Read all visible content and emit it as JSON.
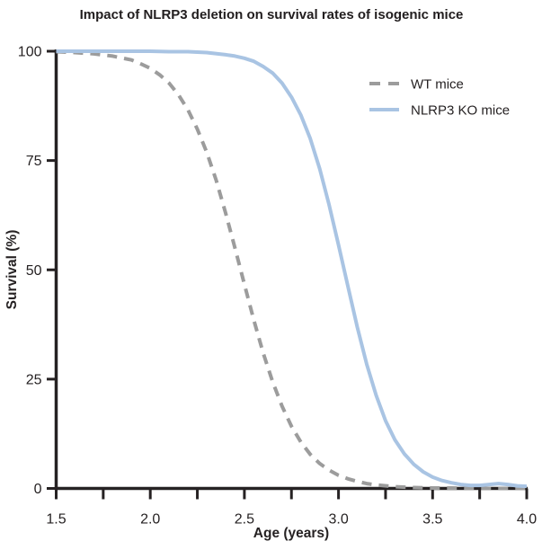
{
  "title": "Impact of NLRP3 deletion on survival rates of isogenic mice",
  "chart_data": {
    "type": "line",
    "title": "Impact of NLRP3 deletion on survival rates of isogenic mice",
    "xlabel": "Age (years)",
    "ylabel": "Survival (%)",
    "xlim": [
      1.5,
      4.0
    ],
    "ylim": [
      0,
      100
    ],
    "grid": false,
    "legend_position": "upper-right-inside",
    "axis_color": "#262223",
    "x_major_ticks": [
      1.5,
      2.0,
      2.5,
      3.0,
      3.5,
      4.0
    ],
    "x_tick_labels": [
      "1.5",
      "2.0",
      "2.5",
      "3.0",
      "3.5",
      "4.0"
    ],
    "x_minor_ticks": [
      1.75,
      2.25,
      2.75,
      3.25,
      3.75
    ],
    "y_ticks": [
      0,
      25,
      50,
      75,
      100
    ],
    "y_tick_labels": [
      "0",
      "25",
      "50",
      "75",
      "100"
    ],
    "series": [
      {
        "name": "WT mice",
        "color": "#9c9c9c",
        "style": "dashed",
        "dash": "11 8",
        "x": [
          1.5,
          1.6,
          1.7,
          1.8,
          1.9,
          1.95,
          2.0,
          2.05,
          2.1,
          2.15,
          2.2,
          2.25,
          2.3,
          2.35,
          2.4,
          2.45,
          2.5,
          2.55,
          2.6,
          2.65,
          2.7,
          2.75,
          2.8,
          2.85,
          2.9,
          2.95,
          3.0,
          3.05,
          3.1,
          3.15,
          3.2,
          3.3,
          3.4,
          3.5,
          3.6,
          3.7,
          3.8,
          3.9,
          4.0
        ],
        "y": [
          99.9,
          99.7,
          99.4,
          98.9,
          98.0,
          97.1,
          96.1,
          94.6,
          92.7,
          90.0,
          86.6,
          82.2,
          76.9,
          70.5,
          63.0,
          55.0,
          46.7,
          38.5,
          31.0,
          24.4,
          18.8,
          14.2,
          10.6,
          7.8,
          5.7,
          4.2,
          3.0,
          2.2,
          1.6,
          1.1,
          0.8,
          0.4,
          0.2,
          0.1,
          0.1,
          0.0,
          0.0,
          0.0,
          0.0
        ]
      },
      {
        "name": "NLRP3 KO mice",
        "color": "#a9c4e3",
        "style": "solid",
        "dash": "",
        "x": [
          1.5,
          1.7,
          1.9,
          2.0,
          2.1,
          2.2,
          2.3,
          2.4,
          2.45,
          2.5,
          2.55,
          2.6,
          2.65,
          2.7,
          2.75,
          2.8,
          2.85,
          2.9,
          2.95,
          3.0,
          3.05,
          3.1,
          3.15,
          3.2,
          3.25,
          3.3,
          3.35,
          3.4,
          3.45,
          3.5,
          3.55,
          3.6,
          3.65,
          3.7,
          3.75,
          3.8,
          3.85,
          3.9,
          3.95,
          4.0
        ],
        "y": [
          100,
          100,
          100,
          100,
          99.9,
          99.9,
          99.7,
          99.2,
          98.9,
          98.4,
          97.7,
          96.5,
          95.0,
          92.7,
          89.5,
          85.4,
          80.0,
          73.1,
          64.9,
          55.7,
          46.2,
          36.9,
          28.4,
          21.3,
          15.5,
          11.1,
          7.9,
          5.5,
          3.8,
          2.6,
          1.8,
          1.3,
          0.9,
          0.7,
          0.7,
          0.9,
          1.1,
          0.9,
          0.6,
          0.5
        ]
      }
    ]
  }
}
